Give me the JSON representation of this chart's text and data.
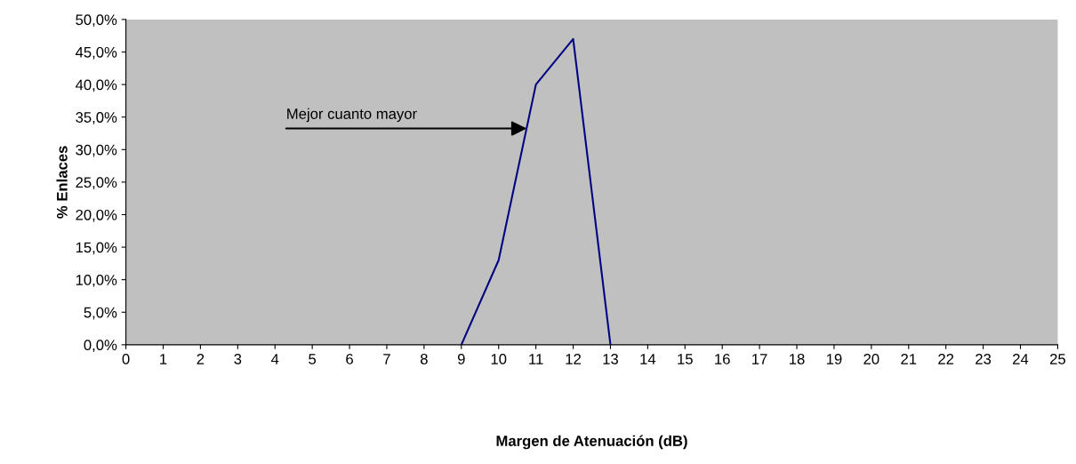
{
  "chart_data": {
    "type": "line",
    "xlabel": "Margen de Atenuación (dB)",
    "ylabel": "% Enlaces",
    "x": [
      9,
      10,
      11,
      12,
      13
    ],
    "series": [
      {
        "color": "#000080",
        "values": [
          0,
          13,
          40,
          47,
          0
        ]
      }
    ],
    "xlim": [
      0,
      25
    ],
    "xticks": [
      0,
      1,
      2,
      3,
      4,
      5,
      6,
      7,
      8,
      9,
      10,
      11,
      12,
      13,
      14,
      15,
      16,
      17,
      18,
      19,
      20,
      21,
      22,
      23,
      24,
      25
    ],
    "ylim": [
      0,
      50
    ],
    "yticks": [
      {
        "value": 0,
        "label": "0,0%"
      },
      {
        "value": 5,
        "label": "5,0%"
      },
      {
        "value": 10,
        "label": "10,0%"
      },
      {
        "value": 15,
        "label": "15,0%"
      },
      {
        "value": 20,
        "label": "20,0%"
      },
      {
        "value": 25,
        "label": "25,0%"
      },
      {
        "value": 30,
        "label": "30,0%"
      },
      {
        "value": 35,
        "label": "35,0%"
      },
      {
        "value": 40,
        "label": "40,0%"
      },
      {
        "value": 45,
        "label": "45,0%"
      },
      {
        "value": 50,
        "label": "50,0%"
      }
    ],
    "annotations": [
      {
        "text": "Mejor cuanto mayor",
        "x": 10.75,
        "y": 33.25
      }
    ],
    "grid": false,
    "legend": false,
    "marker": "none",
    "line_style": "solid"
  }
}
